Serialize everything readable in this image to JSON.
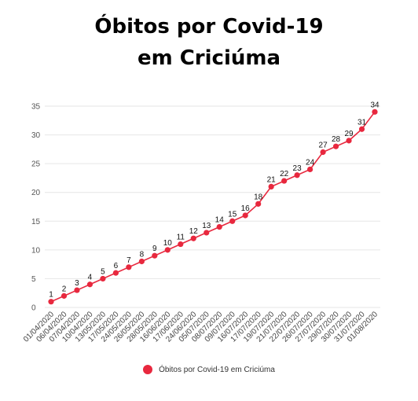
{
  "chart_data": {
    "type": "line",
    "title_lines": [
      "Óbitos por Covid-19",
      "em Criciúma"
    ],
    "xlabel": "",
    "ylabel": "",
    "x": [
      "01/04/2020",
      "06/04/2020",
      "07/04/2020",
      "10/04/2020",
      "13/05/2020",
      "17/05/2020",
      "24/05/2020",
      "26/05/2020",
      "28/05/2020",
      "16/06/2020",
      "17/06/2020",
      "24/06/2020",
      "05/07/2020",
      "08/07/2020",
      "09/07/2020",
      "16/07/2020",
      "17/07/2020",
      "19/07/2020",
      "21/07/2020",
      "22/07/2020",
      "26/07/2020",
      "27/07/2020",
      "29/07/2020",
      "30/07/2020",
      "31/07/2020",
      "01/08/2020"
    ],
    "series": [
      {
        "name": "Óbitos por Covid-19 em Criciúma",
        "values": [
          1,
          2,
          3,
          4,
          5,
          6,
          7,
          8,
          9,
          10,
          11,
          12,
          13,
          14,
          15,
          16,
          18,
          21,
          22,
          23,
          24,
          27,
          28,
          29,
          31,
          34
        ],
        "color": "#e8283e"
      }
    ],
    "ylim": [
      0,
      35
    ],
    "yticks": [
      0,
      5,
      10,
      15,
      20,
      25,
      30,
      35
    ],
    "grid": true,
    "legend_position": "bottom"
  }
}
